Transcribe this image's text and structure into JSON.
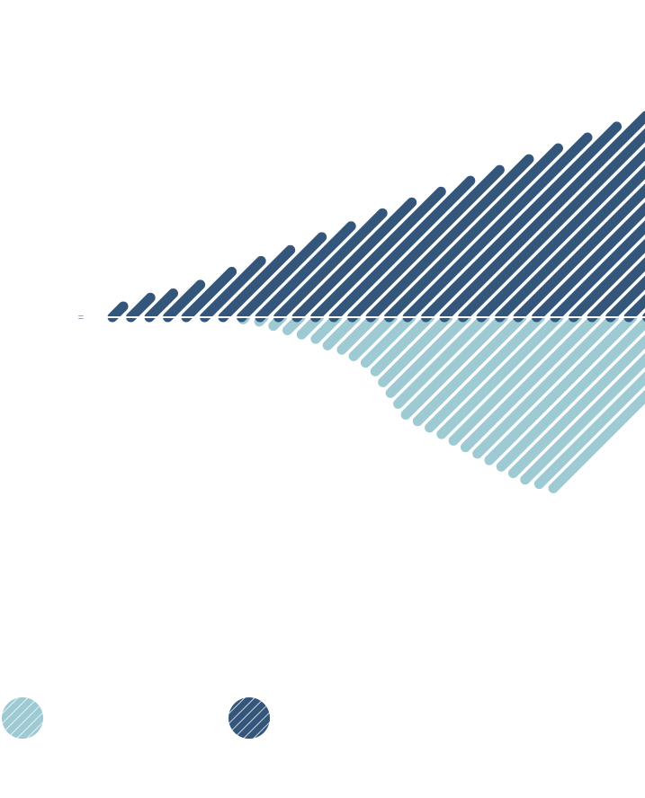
{
  "chart_data": {
    "type": "area",
    "style": "diagonal-hatched diverging area",
    "title": "",
    "xlabel": "",
    "ylabel": "",
    "grid": false,
    "baseline": 0,
    "x": [
      0,
      1,
      2,
      3,
      4,
      5,
      6,
      7,
      8,
      9,
      10,
      11,
      12,
      13,
      14,
      15,
      16,
      17,
      18,
      19,
      20,
      21,
      22,
      23,
      24,
      25,
      26,
      27,
      28,
      29,
      30,
      31
    ],
    "series": [
      {
        "direction": "up",
        "color": "#34567a",
        "values": [
          0,
          0,
          5,
          9,
          11,
          15,
          21,
          26,
          31,
          37,
          42,
          48,
          53,
          58,
          63,
          68,
          73,
          78,
          83,
          88,
          93,
          97,
          98,
          99,
          100,
          101,
          102,
          104,
          106,
          110,
          115,
          118
        ]
      },
      {
        "direction": "down",
        "color": "#9ecad3",
        "values": [
          0,
          0,
          0,
          0,
          0,
          1,
          2,
          4,
          6,
          8,
          10,
          13,
          15,
          18,
          21,
          25,
          30,
          35,
          40,
          45,
          48,
          51,
          54,
          57,
          60,
          63,
          66,
          69,
          72,
          75,
          77,
          79
        ]
      }
    ],
    "legend": {
      "placement": "bottom-left",
      "entries": [
        {
          "series": 1,
          "swatch": "hatched-circle",
          "color": "#9ecad3"
        },
        {
          "series": 0,
          "swatch": "hatched-circle",
          "color": "#34567a"
        }
      ]
    }
  }
}
